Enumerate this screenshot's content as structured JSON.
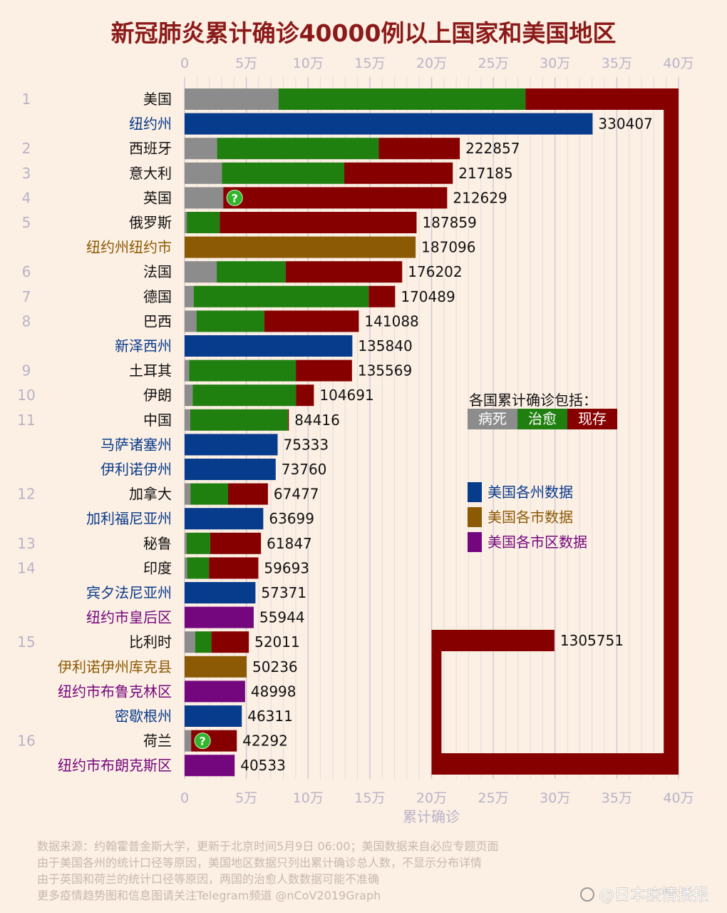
{
  "title": "新冠肺炎累计确诊40000例以上国家和美国地区",
  "colors": {
    "background": "#fcefe3",
    "death": "#8c8c8c",
    "recovered": "#1f7f0f",
    "active": "#870000",
    "state": "#073b8c",
    "city": "#8c5a05",
    "borough": "#75077e",
    "title": "#8b1a1a",
    "axis_text": "#b9b3c8"
  },
  "chart_data": {
    "type": "bar",
    "orientation": "horizontal",
    "stacked": true,
    "title": "新冠肺炎累计确诊40000例以上国家和美国地区",
    "xlabel": "累计确诊",
    "ylabel": "",
    "xlim": [
      0,
      400000
    ],
    "x_ticks": [
      "0",
      "5万",
      "10万",
      "15万",
      "20万",
      "25万",
      "30万",
      "35万",
      "40万"
    ],
    "grid": true,
    "legend_position": "right",
    "legend": {
      "title": "各国累计确诊包括：",
      "segments": [
        "病死",
        "治愈",
        "现存"
      ],
      "types": [
        {
          "key": "state",
          "label": "美国各州数据"
        },
        {
          "key": "city",
          "label": "美国各市数据"
        },
        {
          "key": "borough",
          "label": "美国各市区数据"
        }
      ]
    },
    "rows": [
      {
        "rank": "1",
        "name": "美国",
        "type": "country",
        "death": 76000,
        "recovered": 200000,
        "active": 1029751,
        "total": 1305751,
        "total_label": "1305751"
      },
      {
        "rank": "",
        "name": "纽约州",
        "type": "state",
        "total": 330407,
        "total_label": "330407"
      },
      {
        "rank": "2",
        "name": "西班牙",
        "type": "country",
        "death": 26300,
        "recovered": 131000,
        "active": 65557,
        "total": 222857,
        "total_label": "222857"
      },
      {
        "rank": "3",
        "name": "意大利",
        "type": "country",
        "death": 30300,
        "recovered": 99000,
        "active": 87885,
        "total": 217185,
        "total_label": "217185"
      },
      {
        "rank": "4",
        "name": "英国",
        "type": "country",
        "death": 31300,
        "recovered": 0,
        "active": 181329,
        "total": 212629,
        "total_label": "212629",
        "uncertain": true
      },
      {
        "rank": "5",
        "name": "俄罗斯",
        "type": "country",
        "death": 1800,
        "recovered": 26600,
        "active": 159459,
        "total": 187859,
        "total_label": "187859"
      },
      {
        "rank": "",
        "name": "纽约州纽约市",
        "type": "city",
        "total": 187096,
        "total_label": "187096"
      },
      {
        "rank": "6",
        "name": "法国",
        "type": "country",
        "death": 26000,
        "recovered": 55800,
        "active": 94402,
        "total": 176202,
        "total_label": "176202"
      },
      {
        "rank": "7",
        "name": "德国",
        "type": "country",
        "death": 7400,
        "recovered": 141700,
        "active": 21389,
        "total": 170489,
        "total_label": "170489"
      },
      {
        "rank": "8",
        "name": "巴西",
        "type": "country",
        "death": 9600,
        "recovered": 55000,
        "active": 76488,
        "total": 141088,
        "total_label": "141088"
      },
      {
        "rank": "",
        "name": "新泽西州",
        "type": "state",
        "total": 135840,
        "total_label": "135840"
      },
      {
        "rank": "9",
        "name": "土耳其",
        "type": "country",
        "death": 3700,
        "recovered": 86400,
        "active": 45469,
        "total": 135569,
        "total_label": "135569"
      },
      {
        "rank": "10",
        "name": "伊朗",
        "type": "country",
        "death": 6500,
        "recovered": 83800,
        "active": 14391,
        "total": 104691,
        "total_label": "104691"
      },
      {
        "rank": "11",
        "name": "中国",
        "type": "country",
        "death": 4600,
        "recovered": 79000,
        "active": 816,
        "total": 84416,
        "total_label": "84416"
      },
      {
        "rank": "",
        "name": "马萨诸塞州",
        "type": "state",
        "total": 75333,
        "total_label": "75333"
      },
      {
        "rank": "",
        "name": "伊利诺伊州",
        "type": "state",
        "total": 73760,
        "total_label": "73760"
      },
      {
        "rank": "12",
        "name": "加拿大",
        "type": "country",
        "death": 4700,
        "recovered": 30500,
        "active": 32277,
        "total": 67477,
        "total_label": "67477"
      },
      {
        "rank": "",
        "name": "加利福尼亚州",
        "type": "state",
        "total": 63699,
        "total_label": "63699"
      },
      {
        "rank": "13",
        "name": "秘鲁",
        "type": "country",
        "death": 1700,
        "recovered": 19000,
        "active": 41147,
        "total": 61847,
        "total_label": "61847"
      },
      {
        "rank": "14",
        "name": "印度",
        "type": "country",
        "death": 2000,
        "recovered": 17800,
        "active": 39893,
        "total": 59693,
        "total_label": "59693"
      },
      {
        "rank": "",
        "name": "宾夕法尼亚州",
        "type": "state",
        "total": 57371,
        "total_label": "57371"
      },
      {
        "rank": "",
        "name": "纽约市皇后区",
        "type": "borough",
        "total": 55944,
        "total_label": "55944"
      },
      {
        "rank": "15",
        "name": "比利时",
        "type": "country",
        "death": 8500,
        "recovered": 13200,
        "active": 30311,
        "total": 52011,
        "total_label": "52011"
      },
      {
        "rank": "",
        "name": "伊利诺伊州库克县",
        "type": "city",
        "total": 50236,
        "total_label": "50236"
      },
      {
        "rank": "",
        "name": "纽约市布鲁克林区",
        "type": "borough",
        "total": 48998,
        "total_label": "48998"
      },
      {
        "rank": "",
        "name": "密歇根州",
        "type": "state",
        "total": 46311,
        "total_label": "46311"
      },
      {
        "rank": "16",
        "name": "荷兰",
        "type": "country",
        "death": 5300,
        "recovered": 0,
        "active": 36992,
        "total": 42292,
        "total_label": "42292",
        "uncertain": true
      },
      {
        "rank": "",
        "name": "纽约市布朗克斯区",
        "type": "borough",
        "total": 40533,
        "total_label": "40533"
      }
    ],
    "uncertain_marker": "?"
  },
  "footer": {
    "lines": [
      "数据来源：约翰霍普金斯大学，更新于北京时间5月9日 06:00；美国数据来自必应专题页面",
      "由于美国各州的统计口径等原因，美国地区数据只列出累计确诊总人数，不显示分布详情",
      "由于英国和荷兰的统计口径等原因，两国的治愈人数数据可能不准确",
      "更多疫情趋势图和信息图请关注Telegram频道 @nCoV2019Graph"
    ]
  },
  "watermark": "@日本疫情播报"
}
